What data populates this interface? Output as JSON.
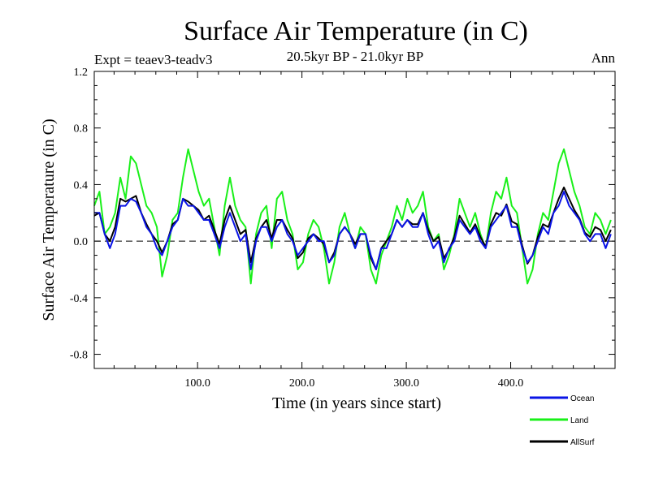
{
  "chart_data": {
    "type": "line",
    "title": "Surface Air Temperature (in C)",
    "subtitle": "20.5kyr BP - 21.0kyr BP",
    "expt_label": "Expt = teaev3-teadv3",
    "season_label": "Ann",
    "xlabel": "Time (in years since start)",
    "ylabel": "Surface Air Temperature (in C)",
    "xlim": [
      1,
      500
    ],
    "ylim": [
      -0.9,
      1.2
    ],
    "x_ticks": [
      100,
      200,
      300,
      400
    ],
    "x_tick_labels": [
      "100.0",
      "200.0",
      "300.0",
      "400.0"
    ],
    "y_ticks": [
      -0.8,
      -0.4,
      0.0,
      0.4,
      0.8,
      1.2
    ],
    "y_tick_labels": [
      "-0.8",
      "-0.4",
      "0.0",
      "0.4",
      "0.8",
      "1.2"
    ],
    "zero_line": true,
    "colors": {
      "Ocean": "#0a14e6",
      "Land": "#19f019",
      "AllSurf": "#000000"
    },
    "series_order": [
      "Land",
      "AllSurf",
      "Ocean"
    ],
    "legend": [
      {
        "name": "Ocean",
        "color": "#0a14e6"
      },
      {
        "name": "Land",
        "color": "#19f019"
      },
      {
        "name": "AllSurf",
        "color": "#000000"
      }
    ],
    "series": [
      {
        "name": "Land",
        "x_start": 1,
        "step": 5,
        "values": [
          0.25,
          0.35,
          0.05,
          0.1,
          0.2,
          0.45,
          0.3,
          0.6,
          0.55,
          0.4,
          0.25,
          0.2,
          0.1,
          -0.25,
          -0.1,
          0.15,
          0.2,
          0.45,
          0.65,
          0.5,
          0.35,
          0.25,
          0.3,
          0.1,
          -0.1,
          0.25,
          0.45,
          0.25,
          0.15,
          0.1,
          -0.3,
          0.05,
          0.2,
          0.25,
          -0.05,
          0.3,
          0.35,
          0.15,
          0.05,
          -0.2,
          -0.15,
          0.05,
          0.15,
          0.1,
          -0.05,
          -0.3,
          -0.15,
          0.1,
          0.2,
          0.05,
          -0.05,
          0.1,
          0.05,
          -0.2,
          -0.3,
          -0.1,
          0.0,
          0.1,
          0.25,
          0.15,
          0.3,
          0.2,
          0.25,
          0.35,
          0.1,
          0.0,
          0.05,
          -0.2,
          -0.1,
          0.05,
          0.3,
          0.2,
          0.1,
          0.2,
          0.05,
          -0.05,
          0.2,
          0.35,
          0.3,
          0.45,
          0.25,
          0.2,
          -0.05,
          -0.3,
          -0.2,
          0.05,
          0.2,
          0.15,
          0.35,
          0.55,
          0.65,
          0.5,
          0.35,
          0.25,
          0.1,
          0.05,
          0.2,
          0.15,
          0.05,
          0.15
        ]
      },
      {
        "name": "AllSurf",
        "x_start": 1,
        "step": 5,
        "values": [
          0.18,
          0.2,
          0.05,
          0.0,
          0.1,
          0.3,
          0.28,
          0.3,
          0.32,
          0.2,
          0.12,
          0.05,
          0.0,
          -0.08,
          0.0,
          0.12,
          0.15,
          0.3,
          0.28,
          0.25,
          0.22,
          0.15,
          0.18,
          0.08,
          -0.02,
          0.15,
          0.25,
          0.15,
          0.05,
          0.08,
          -0.15,
          0.02,
          0.1,
          0.15,
          0.02,
          0.15,
          0.15,
          0.08,
          0.02,
          -0.12,
          -0.08,
          0.02,
          0.05,
          0.02,
          -0.02,
          -0.15,
          -0.08,
          0.05,
          0.1,
          0.05,
          -0.02,
          0.05,
          0.05,
          -0.12,
          -0.2,
          -0.05,
          0.0,
          0.05,
          0.15,
          0.1,
          0.15,
          0.12,
          0.12,
          0.2,
          0.08,
          0.0,
          0.03,
          -0.12,
          -0.06,
          0.03,
          0.18,
          0.12,
          0.06,
          0.12,
          0.03,
          -0.04,
          0.12,
          0.2,
          0.18,
          0.26,
          0.14,
          0.12,
          -0.03,
          -0.16,
          -0.1,
          0.03,
          0.12,
          0.1,
          0.2,
          0.3,
          0.38,
          0.3,
          0.22,
          0.16,
          0.06,
          0.03,
          0.1,
          0.08,
          0.0,
          0.08
        ]
      },
      {
        "name": "Ocean",
        "x_start": 1,
        "step": 5,
        "values": [
          0.2,
          0.2,
          0.05,
          -0.05,
          0.05,
          0.25,
          0.25,
          0.3,
          0.28,
          0.2,
          0.1,
          0.05,
          -0.05,
          -0.1,
          0.0,
          0.1,
          0.15,
          0.3,
          0.25,
          0.25,
          0.2,
          0.15,
          0.15,
          0.05,
          -0.05,
          0.1,
          0.2,
          0.1,
          0.0,
          0.05,
          -0.2,
          0.0,
          0.1,
          0.1,
          0.0,
          0.1,
          0.15,
          0.05,
          0.0,
          -0.1,
          -0.05,
          0.0,
          0.05,
          0.0,
          0.0,
          -0.15,
          -0.1,
          0.05,
          0.1,
          0.05,
          -0.05,
          0.05,
          0.05,
          -0.1,
          -0.2,
          -0.05,
          -0.05,
          0.05,
          0.15,
          0.1,
          0.15,
          0.1,
          0.1,
          0.2,
          0.05,
          -0.05,
          0.0,
          -0.15,
          -0.05,
          0.0,
          0.15,
          0.1,
          0.05,
          0.1,
          0.0,
          -0.05,
          0.1,
          0.15,
          0.2,
          0.25,
          0.1,
          0.1,
          -0.05,
          -0.15,
          -0.1,
          0.0,
          0.1,
          0.05,
          0.2,
          0.25,
          0.35,
          0.25,
          0.2,
          0.15,
          0.05,
          0.0,
          0.05,
          0.05,
          -0.05,
          0.05
        ]
      }
    ]
  }
}
